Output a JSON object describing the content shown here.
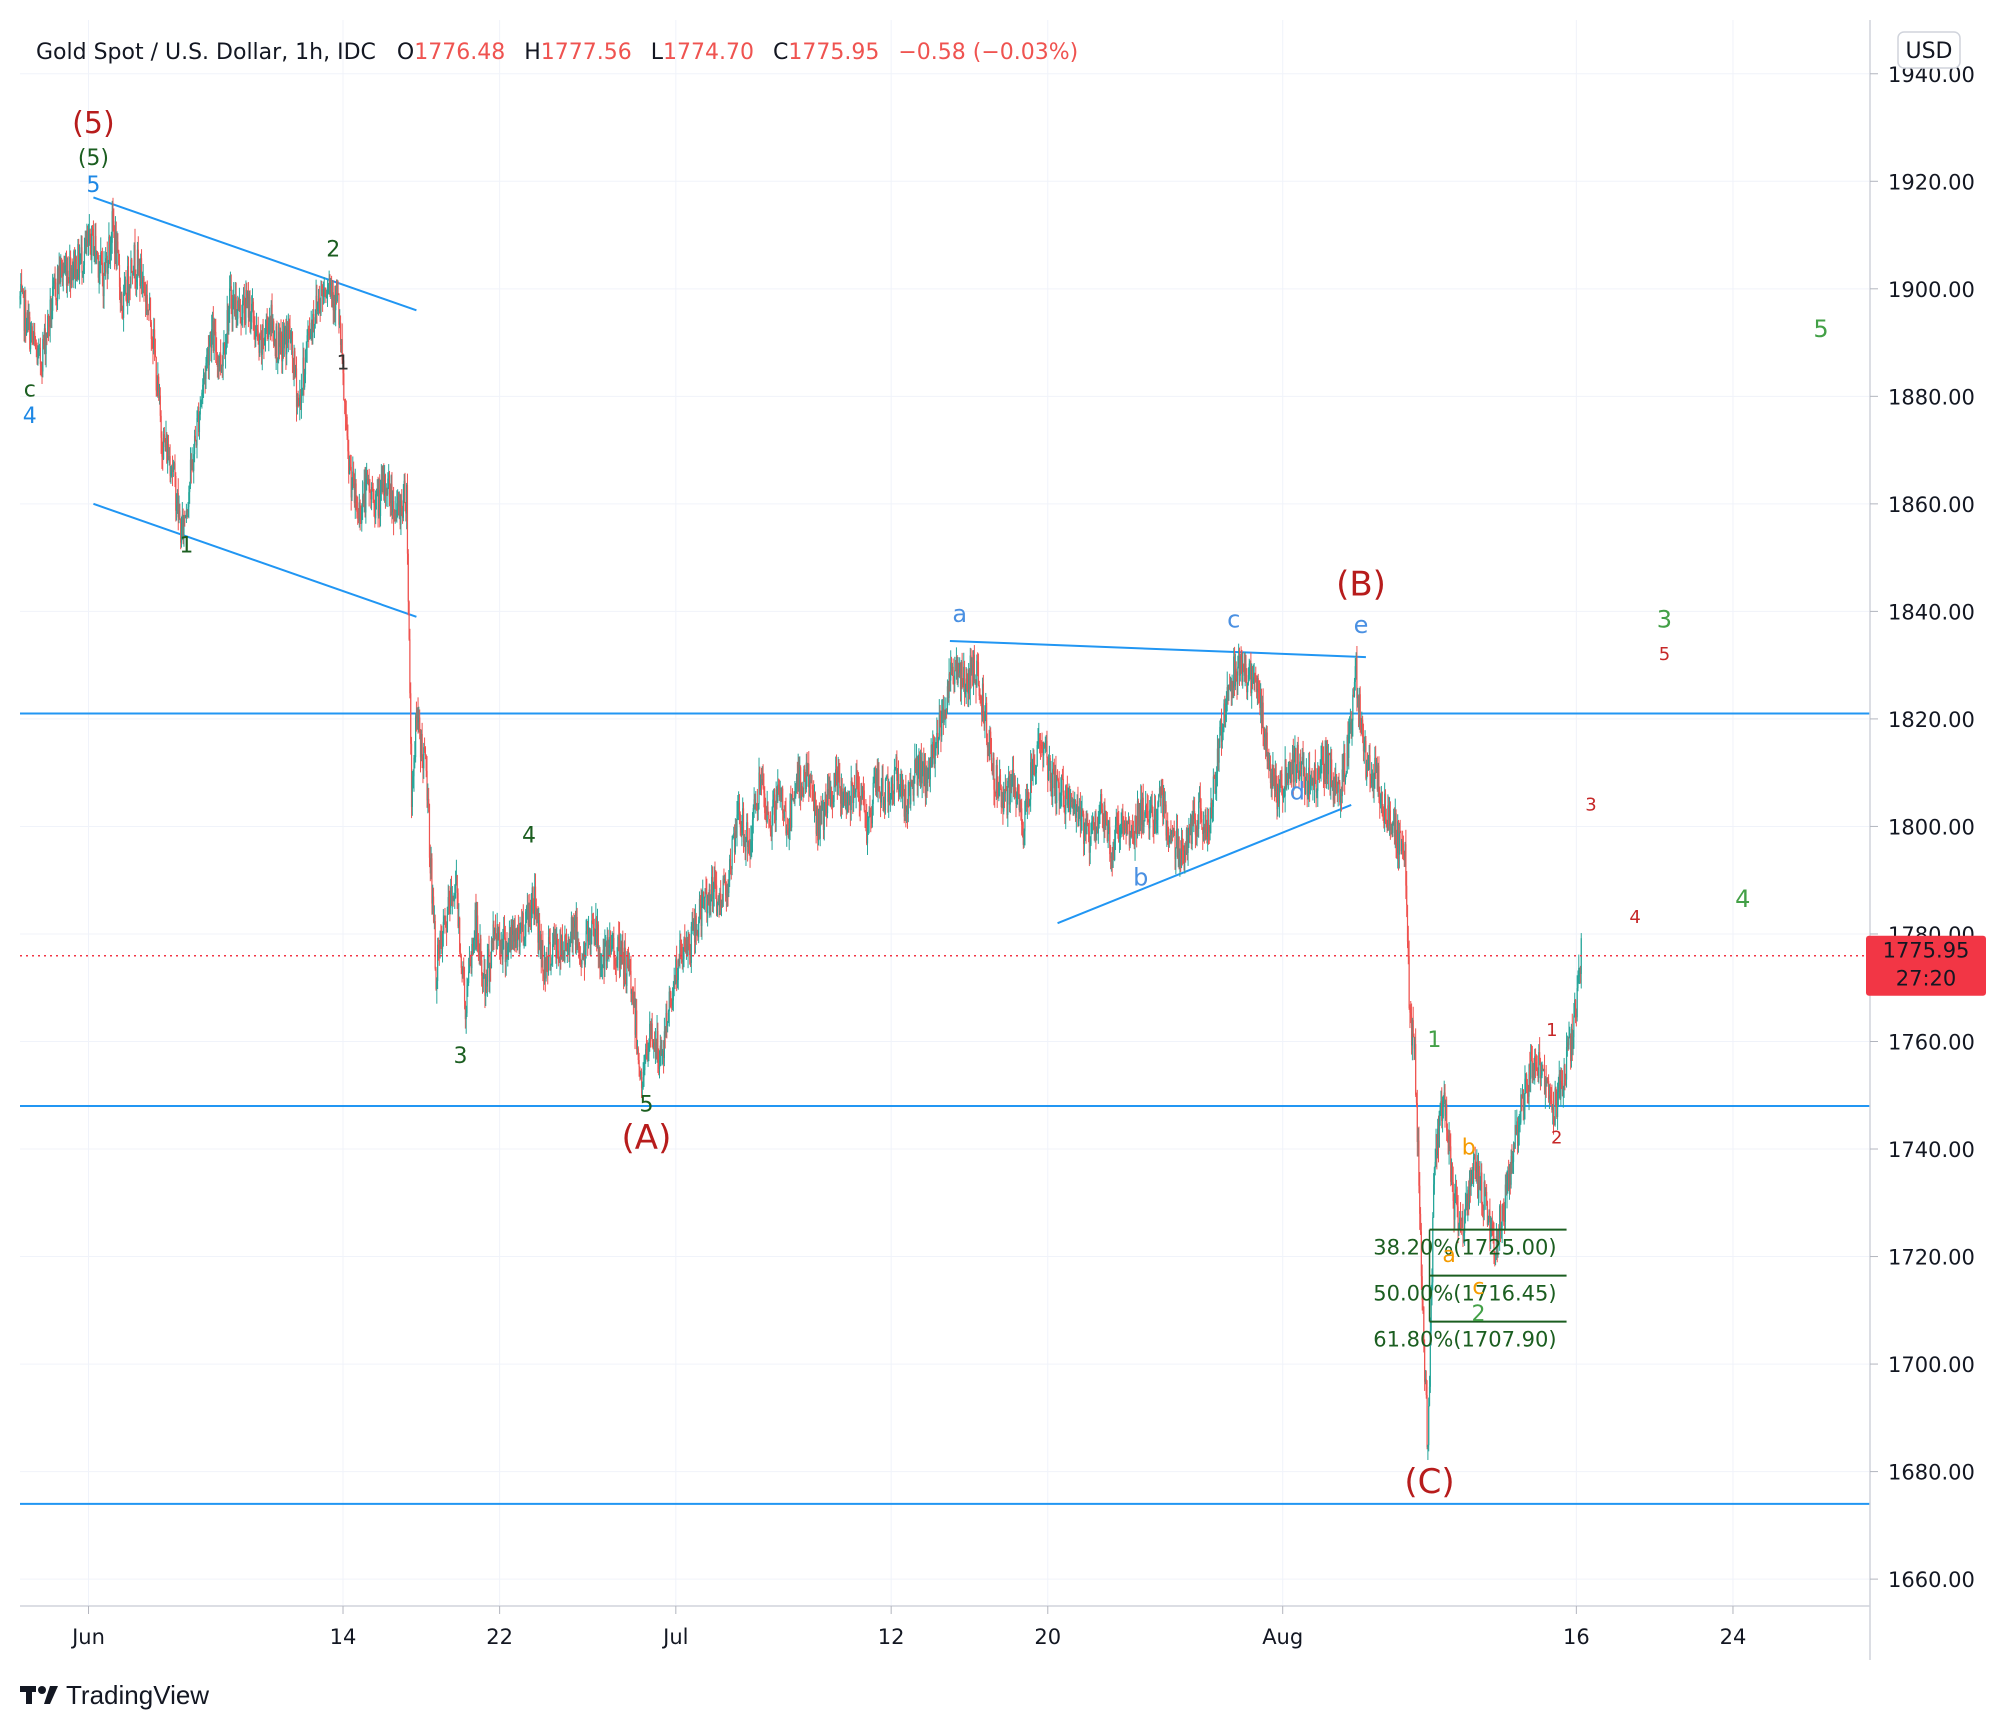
{
  "header": {
    "symbol": "Gold Spot / U.S. Dollar, 1h, IDC",
    "open_label": "O",
    "open": "1776.48",
    "high_label": "H",
    "high": "1777.56",
    "low_label": "L",
    "low": "1774.70",
    "close_label": "C",
    "close": "1775.95",
    "change": "−0.58 (−0.03%)",
    "currency_button": "USD"
  },
  "price_tag": {
    "price": "1775.95",
    "countdown": "27:20"
  },
  "branding": {
    "name": "TradingView"
  },
  "colors": {
    "up": "#26a69a",
    "down": "#ef5350",
    "trendline": "#2196f3",
    "wave_primary": "#b71c1c",
    "wave_dark_green": "#1b5e20",
    "wave_green": "#43a047",
    "wave_blue": "#1e88e5",
    "wave_light_blue": "#4a90e2",
    "wave_orange": "#f59b00",
    "wave_red_small": "#c62828",
    "fib": "#1b5e20",
    "price_tag": "#f23645"
  },
  "chart_data": {
    "type": "candlestick",
    "title": "Gold Spot / U.S. Dollar, 1h, IDC",
    "xlabel": "",
    "ylabel": "",
    "ylim": [
      1655,
      1950
    ],
    "x_range": [
      "2021-05-28T12:00",
      "2021-08-31T00:00"
    ],
    "grid": true,
    "y_ticks": [
      "1660.00",
      "1680.00",
      "1700.00",
      "1720.00",
      "1740.00",
      "1760.00",
      "1780.00",
      "1800.00",
      "1820.00",
      "1840.00",
      "1860.00",
      "1880.00",
      "1900.00",
      "1920.00",
      "1940.00"
    ],
    "x_ticks": [
      {
        "date": "2021-06-01",
        "label": "Jun"
      },
      {
        "date": "2021-06-14",
        "label": "14"
      },
      {
        "date": "2021-06-22",
        "label": "22"
      },
      {
        "date": "2021-07-01",
        "label": "Jul"
      },
      {
        "date": "2021-07-12",
        "label": "12"
      },
      {
        "date": "2021-07-20",
        "label": "20"
      },
      {
        "date": "2021-08-01",
        "label": "Aug"
      },
      {
        "date": "2021-08-16",
        "label": "16"
      },
      {
        "date": "2021-08-24",
        "label": "24"
      }
    ],
    "price_path": [
      [
        "2021-05-28T12:00",
        1898
      ],
      [
        "2021-05-29T12:00",
        1886
      ],
      [
        "2021-05-30T12:00",
        1903
      ],
      [
        "2021-05-31T12:00",
        1905
      ],
      [
        "2021-06-01T06:00",
        1909
      ],
      [
        "2021-06-01T18:00",
        1902
      ],
      [
        "2021-06-02T06:00",
        1912
      ],
      [
        "2021-06-02T18:00",
        1896
      ],
      [
        "2021-06-03T06:00",
        1906
      ],
      [
        "2021-06-03T18:00",
        1902
      ],
      [
        "2021-06-04T06:00",
        1893
      ],
      [
        "2021-06-04T18:00",
        1872
      ],
      [
        "2021-06-05T06:00",
        1868
      ],
      [
        "2021-06-05T18:00",
        1854
      ],
      [
        "2021-06-06T06:00",
        1866
      ],
      [
        "2021-06-06T18:00",
        1880
      ],
      [
        "2021-06-07T06:00",
        1892
      ],
      [
        "2021-06-07T18:00",
        1886
      ],
      [
        "2021-06-08T06:00",
        1898
      ],
      [
        "2021-06-08T18:00",
        1896
      ],
      [
        "2021-06-09T06:00",
        1897
      ],
      [
        "2021-06-09T18:00",
        1888
      ],
      [
        "2021-06-10T06:00",
        1895
      ],
      [
        "2021-06-10T18:00",
        1888
      ],
      [
        "2021-06-11T06:00",
        1892
      ],
      [
        "2021-06-11T18:00",
        1878
      ],
      [
        "2021-06-12T06:00",
        1892
      ],
      [
        "2021-06-12T18:00",
        1898
      ],
      [
        "2021-06-13T06:00",
        1902
      ],
      [
        "2021-06-13T18:00",
        1897
      ],
      [
        "2021-06-14T06:00",
        1868
      ],
      [
        "2021-06-14T18:00",
        1858
      ],
      [
        "2021-06-15T06:00",
        1863
      ],
      [
        "2021-06-15T18:00",
        1860
      ],
      [
        "2021-06-16T06:00",
        1864
      ],
      [
        "2021-06-16T18:00",
        1858
      ],
      [
        "2021-06-17T06:00",
        1862
      ],
      [
        "2021-06-17T12:00",
        1806
      ],
      [
        "2021-06-17T18:00",
        1820
      ],
      [
        "2021-06-18T06:00",
        1810
      ],
      [
        "2021-06-18T18:00",
        1773
      ],
      [
        "2021-06-19T06:00",
        1782
      ],
      [
        "2021-06-19T18:00",
        1790
      ],
      [
        "2021-06-20T06:00",
        1766
      ],
      [
        "2021-06-20T18:00",
        1782
      ],
      [
        "2021-06-21T06:00",
        1770
      ],
      [
        "2021-06-21T18:00",
        1781
      ],
      [
        "2021-06-22T06:00",
        1778
      ],
      [
        "2021-06-22T18:00",
        1779
      ],
      [
        "2021-06-23T06:00",
        1782
      ],
      [
        "2021-06-23T18:00",
        1787
      ],
      [
        "2021-06-24T06:00",
        1774
      ],
      [
        "2021-06-24T18:00",
        1778
      ],
      [
        "2021-06-25T06:00",
        1776
      ],
      [
        "2021-06-25T18:00",
        1782
      ],
      [
        "2021-06-26T06:00",
        1775
      ],
      [
        "2021-06-26T18:00",
        1783
      ],
      [
        "2021-06-27T06:00",
        1774
      ],
      [
        "2021-06-27T18:00",
        1778
      ],
      [
        "2021-06-28T06:00",
        1775
      ],
      [
        "2021-06-28T18:00",
        1771
      ],
      [
        "2021-06-29T06:00",
        1752
      ],
      [
        "2021-06-29T18:00",
        1762
      ],
      [
        "2021-06-30T06:00",
        1756
      ],
      [
        "2021-06-30T18:00",
        1769
      ],
      [
        "2021-07-01T06:00",
        1776
      ],
      [
        "2021-07-01T18:00",
        1778
      ],
      [
        "2021-07-02T06:00",
        1784
      ],
      [
        "2021-07-02T18:00",
        1788
      ],
      [
        "2021-07-03T06:00",
        1786
      ],
      [
        "2021-07-03T18:00",
        1792
      ],
      [
        "2021-07-04T06:00",
        1802
      ],
      [
        "2021-07-04T18:00",
        1796
      ],
      [
        "2021-07-05T06:00",
        1808
      ],
      [
        "2021-07-05T18:00",
        1800
      ],
      [
        "2021-07-06T06:00",
        1806
      ],
      [
        "2021-07-06T18:00",
        1800
      ],
      [
        "2021-07-07T06:00",
        1808
      ],
      [
        "2021-07-07T18:00",
        1810
      ],
      [
        "2021-07-08T06:00",
        1800
      ],
      [
        "2021-07-08T18:00",
        1804
      ],
      [
        "2021-07-09T06:00",
        1808
      ],
      [
        "2021-07-09T18:00",
        1804
      ],
      [
        "2021-07-10T06:00",
        1810
      ],
      [
        "2021-07-10T18:00",
        1800
      ],
      [
        "2021-07-11T06:00",
        1808
      ],
      [
        "2021-07-11T18:00",
        1806
      ],
      [
        "2021-07-12T06:00",
        1810
      ],
      [
        "2021-07-12T18:00",
        1804
      ],
      [
        "2021-07-13T06:00",
        1811
      ],
      [
        "2021-07-13T18:00",
        1808
      ],
      [
        "2021-07-14T06:00",
        1815
      ],
      [
        "2021-07-14T18:00",
        1824
      ],
      [
        "2021-07-15T06:00",
        1830
      ],
      [
        "2021-07-15T18:00",
        1826
      ],
      [
        "2021-07-16T06:00",
        1830
      ],
      [
        "2021-07-16T18:00",
        1822
      ],
      [
        "2021-07-17T06:00",
        1810
      ],
      [
        "2021-07-17T18:00",
        1804
      ],
      [
        "2021-07-18T06:00",
        1808
      ],
      [
        "2021-07-18T18:00",
        1800
      ],
      [
        "2021-07-19T06:00",
        1812
      ],
      [
        "2021-07-19T18:00",
        1816
      ],
      [
        "2021-07-20T06:00",
        1808
      ],
      [
        "2021-07-20T18:00",
        1806
      ],
      [
        "2021-07-21T06:00",
        1804
      ],
      [
        "2021-07-21T18:00",
        1800
      ],
      [
        "2021-07-22T06:00",
        1798
      ],
      [
        "2021-07-22T18:00",
        1804
      ],
      [
        "2021-07-23T06:00",
        1795
      ],
      [
        "2021-07-23T18:00",
        1802
      ],
      [
        "2021-07-24T06:00",
        1798
      ],
      [
        "2021-07-24T18:00",
        1804
      ],
      [
        "2021-07-25T06:00",
        1800
      ],
      [
        "2021-07-25T18:00",
        1806
      ],
      [
        "2021-07-26T06:00",
        1798
      ],
      [
        "2021-07-26T18:00",
        1796
      ],
      [
        "2021-07-27T06:00",
        1798
      ],
      [
        "2021-07-27T18:00",
        1802
      ],
      [
        "2021-07-28T06:00",
        1800
      ],
      [
        "2021-07-28T18:00",
        1815
      ],
      [
        "2021-07-29T06:00",
        1828
      ],
      [
        "2021-07-29T18:00",
        1830
      ],
      [
        "2021-07-30T06:00",
        1828
      ],
      [
        "2021-07-30T18:00",
        1826
      ],
      [
        "2021-07-31T06:00",
        1812
      ],
      [
        "2021-07-31T18:00",
        1806
      ],
      [
        "2021-08-01T06:00",
        1810
      ],
      [
        "2021-08-01T18:00",
        1812
      ],
      [
        "2021-08-02T06:00",
        1808
      ],
      [
        "2021-08-02T18:00",
        1810
      ],
      [
        "2021-08-03T06:00",
        1812
      ],
      [
        "2021-08-03T18:00",
        1806
      ],
      [
        "2021-08-04T06:00",
        1812
      ],
      [
        "2021-08-04T18:00",
        1828
      ],
      [
        "2021-08-05T06:00",
        1812
      ],
      [
        "2021-08-05T18:00",
        1810
      ],
      [
        "2021-08-06T06:00",
        1802
      ],
      [
        "2021-08-06T18:00",
        1799
      ],
      [
        "2021-08-07T06:00",
        1794
      ],
      [
        "2021-08-07T12:00",
        1764
      ],
      [
        "2021-08-07T18:00",
        1758
      ],
      [
        "2021-08-08T06:00",
        1700
      ],
      [
        "2021-08-08T10:00",
        1682
      ],
      [
        "2021-08-08T18:00",
        1740
      ],
      [
        "2021-08-09T06:00",
        1749
      ],
      [
        "2021-08-09T18:00",
        1730
      ],
      [
        "2021-08-10T06:00",
        1726
      ],
      [
        "2021-08-10T18:00",
        1736
      ],
      [
        "2021-08-11T06:00",
        1732
      ],
      [
        "2021-08-11T18:00",
        1722
      ],
      [
        "2021-08-12T06:00",
        1728
      ],
      [
        "2021-08-12T18:00",
        1738
      ],
      [
        "2021-08-13T06:00",
        1750
      ],
      [
        "2021-08-13T18:00",
        1754
      ],
      [
        "2021-08-14T06:00",
        1756
      ],
      [
        "2021-08-14T18:00",
        1746
      ],
      [
        "2021-08-15T06:00",
        1752
      ],
      [
        "2021-08-15T18:00",
        1760
      ],
      [
        "2021-08-16T06:00",
        1776
      ]
    ],
    "last_price": 1775.95,
    "horizontal_lines": [
      1821,
      1748,
      1674
    ],
    "trendlines": [
      {
        "from": [
          "2021-06-01T06:00",
          1917
        ],
        "to": [
          "2021-06-17T18:00",
          1896
        ]
      },
      {
        "from": [
          "2021-06-01T06:00",
          1860
        ],
        "to": [
          "2021-06-17T18:00",
          1839
        ]
      },
      {
        "from": [
          "2021-07-15T00:00",
          1834.5
        ],
        "to": [
          "2021-08-05T06:00",
          1831.5
        ]
      },
      {
        "from": [
          "2021-07-20T12:00",
          1782
        ],
        "to": [
          "2021-08-04T12:00",
          1804
        ]
      }
    ],
    "fibonacci": {
      "from_date": "2021-08-08T12:00",
      "to_date": "2021-08-15T12:00",
      "levels": [
        {
          "price": 1725.0,
          "label": "38.20%(1725.00)"
        },
        {
          "price": 1716.45,
          "label": "50.00%(1716.45)"
        },
        {
          "price": 1707.9,
          "label": "61.80%(1707.90)"
        }
      ]
    },
    "wave_labels": [
      {
        "text": "(5)",
        "date": "2021-06-01T06:00",
        "price": 1929,
        "color": "wave_primary",
        "size": 30
      },
      {
        "text": "(5)",
        "date": "2021-06-01T06:00",
        "price": 1923,
        "color": "wave_dark_green",
        "size": 22
      },
      {
        "text": "5",
        "date": "2021-06-01T06:00",
        "price": 1918,
        "color": "wave_blue",
        "size": 22
      },
      {
        "text": "c",
        "date": "2021-05-29T00:00",
        "price": 1880,
        "color": "wave_dark_green",
        "size": 22
      },
      {
        "text": "4",
        "date": "2021-05-29T00:00",
        "price": 1875,
        "color": "wave_blue",
        "size": 22
      },
      {
        "text": "1",
        "date": "2021-06-06T00:00",
        "price": 1851,
        "color": "wave_dark_green",
        "size": 22
      },
      {
        "text": "2",
        "date": "2021-06-13T12:00",
        "price": 1906,
        "color": "wave_dark_green",
        "size": 22
      },
      {
        "text": "1",
        "date": "2021-06-14T00:00",
        "price": 1885,
        "color": "#333333",
        "size": 20
      },
      {
        "text": "4",
        "date": "2021-06-23T12:00",
        "price": 1797,
        "color": "wave_dark_green",
        "size": 22
      },
      {
        "text": "3",
        "date": "2021-06-20T00:00",
        "price": 1756,
        "color": "wave_dark_green",
        "size": 22
      },
      {
        "text": "5",
        "date": "2021-06-29T12:00",
        "price": 1747,
        "color": "wave_dark_green",
        "size": 22
      },
      {
        "text": "(A)",
        "date": "2021-06-29T12:00",
        "price": 1740,
        "color": "wave_primary",
        "size": 34
      },
      {
        "text": "a",
        "date": "2021-07-15T12:00",
        "price": 1838,
        "color": "wave_light_blue",
        "size": 24
      },
      {
        "text": "b",
        "date": "2021-07-24T18:00",
        "price": 1789,
        "color": "wave_light_blue",
        "size": 24
      },
      {
        "text": "c",
        "date": "2021-07-29T12:00",
        "price": 1837,
        "color": "wave_light_blue",
        "size": 24
      },
      {
        "text": "d",
        "date": "2021-08-01T18:00",
        "price": 1805,
        "color": "wave_light_blue",
        "size": 24
      },
      {
        "text": "e",
        "date": "2021-08-05T00:00",
        "price": 1836,
        "color": "wave_light_blue",
        "size": 24
      },
      {
        "text": "(B)",
        "date": "2021-08-05T00:00",
        "price": 1843,
        "color": "wave_primary",
        "size": 34
      },
      {
        "text": "(C)",
        "date": "2021-08-08T12:00",
        "price": 1676,
        "color": "wave_primary",
        "size": 34
      },
      {
        "text": "1",
        "date": "2021-08-08T18:00",
        "price": 1759,
        "color": "wave_green",
        "size": 22
      },
      {
        "text": "b",
        "date": "2021-08-10T12:00",
        "price": 1739,
        "color": "wave_orange",
        "size": 22
      },
      {
        "text": "a",
        "date": "2021-08-09T12:00",
        "price": 1719,
        "color": "wave_orange",
        "size": 22
      },
      {
        "text": "c",
        "date": "2021-08-11T00:00",
        "price": 1713,
        "color": "wave_orange",
        "size": 22
      },
      {
        "text": "2",
        "date": "2021-08-11T00:00",
        "price": 1708,
        "color": "wave_green",
        "size": 22
      },
      {
        "text": "1",
        "date": "2021-08-14T18:00",
        "price": 1761,
        "color": "wave_red_small",
        "size": 18
      },
      {
        "text": "2",
        "date": "2021-08-15T00:00",
        "price": 1741,
        "color": "wave_red_small",
        "size": 18
      },
      {
        "text": "3",
        "date": "2021-08-16T18:00",
        "price": 1803,
        "color": "wave_red_small",
        "size": 18
      },
      {
        "text": "4",
        "date": "2021-08-19T00:00",
        "price": 1782,
        "color": "wave_red_small",
        "size": 18
      },
      {
        "text": "3",
        "date": "2021-08-20T12:00",
        "price": 1837,
        "color": "wave_green",
        "size": 24
      },
      {
        "text": "5",
        "date": "2021-08-20T12:00",
        "price": 1831,
        "color": "wave_red_small",
        "size": 18
      },
      {
        "text": "4",
        "date": "2021-08-24T12:00",
        "price": 1785,
        "color": "wave_green",
        "size": 24
      },
      {
        "text": "5",
        "date": "2021-08-28T12:00",
        "price": 1891,
        "color": "wave_green",
        "size": 24
      }
    ]
  }
}
